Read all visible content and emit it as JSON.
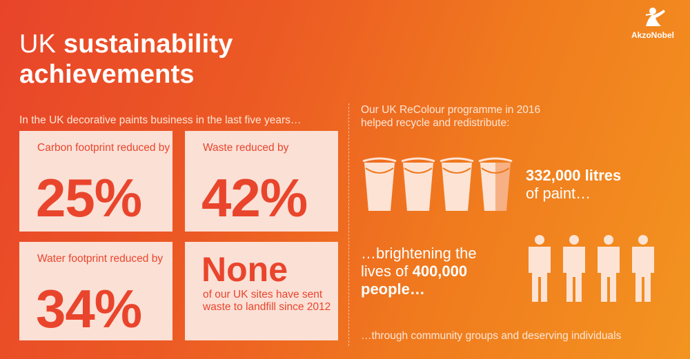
{
  "header": {
    "title_light": "UK",
    "title_bold_1": "sustainability",
    "title_bold_2": "achievements"
  },
  "logo": {
    "name": "AkzoNobel"
  },
  "left": {
    "intro": "In the UK decorative paints business in the last five years…",
    "cards": [
      {
        "label": "Carbon footprint reduced by",
        "value": "25%"
      },
      {
        "label": "Waste reduced by",
        "value": "42%"
      },
      {
        "label": "Water footprint reduced by",
        "value": "34%"
      },
      {
        "value": "None",
        "label": "of our UK sites have sent waste to landfill since 2012"
      }
    ]
  },
  "right": {
    "intro": "Our UK ReColour programme in 2016 helped recycle and redistribute:",
    "litres_bold": "332,000 litres",
    "litres_rest": "of paint…",
    "bright_1": "…brightening the",
    "bright_2": "lives of ",
    "bright_num": "400,000",
    "bright_3": "people…",
    "footer": "…through community groups and deserving individuals",
    "bucket_icons": [
      "bucket-icon",
      "bucket-icon",
      "bucket-icon",
      "bucket-partial-icon"
    ],
    "people_icons": [
      "person-icon",
      "person-icon",
      "person-icon",
      "person-icon"
    ]
  },
  "colors": {
    "accent": "#e9452c",
    "card_bg": "#fbe0d6",
    "bg_start": "#e8442a",
    "bg_end": "#f39420"
  }
}
